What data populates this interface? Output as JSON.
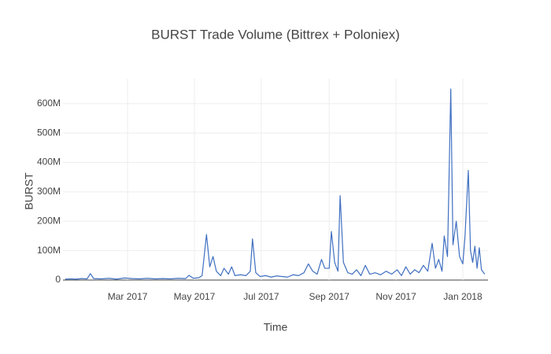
{
  "chart_data": {
    "type": "line",
    "title": "BURST Trade Volume (Bittrex + Poloniex)",
    "x_label": "Time",
    "y_label": "BURST",
    "color": "#3f6fc1",
    "grid": true,
    "xlim": [
      "2017-01-01",
      "2018-01-24"
    ],
    "ylim": [
      0,
      685000000
    ],
    "xticks": [
      {
        "value": "2017-03-01",
        "label": "Mar 2017"
      },
      {
        "value": "2017-05-01",
        "label": "May 2017"
      },
      {
        "value": "2017-07-01",
        "label": "Jul 2017"
      },
      {
        "value": "2017-09-01",
        "label": "Sep 2017"
      },
      {
        "value": "2017-11-01",
        "label": "Nov 2017"
      },
      {
        "value": "2018-01-01",
        "label": "Jan 2018"
      }
    ],
    "yticks": [
      0,
      {
        "value": 100000000,
        "label": "100M"
      },
      {
        "value": 200000000,
        "label": "200M"
      },
      {
        "value": 300000000,
        "label": "300M"
      },
      {
        "value": 400000000,
        "label": "400M"
      },
      {
        "value": 500000000,
        "label": "500M"
      },
      {
        "value": 600000000,
        "label": "600M"
      }
    ],
    "x": [
      "2017-01-03",
      "2017-01-08",
      "2017-01-13",
      "2017-01-18",
      "2017-01-23",
      "2017-01-26",
      "2017-01-29",
      "2017-02-05",
      "2017-02-12",
      "2017-02-19",
      "2017-02-26",
      "2017-03-05",
      "2017-03-12",
      "2017-03-19",
      "2017-03-26",
      "2017-04-02",
      "2017-04-09",
      "2017-04-16",
      "2017-04-23",
      "2017-04-26",
      "2017-04-30",
      "2017-05-05",
      "2017-05-08",
      "2017-05-12",
      "2017-05-15",
      "2017-05-18",
      "2017-05-21",
      "2017-05-25",
      "2017-05-28",
      "2017-06-01",
      "2017-06-04",
      "2017-06-07",
      "2017-06-12",
      "2017-06-17",
      "2017-06-21",
      "2017-06-23",
      "2017-06-26",
      "2017-06-30",
      "2017-07-05",
      "2017-07-10",
      "2017-07-15",
      "2017-07-20",
      "2017-07-25",
      "2017-07-30",
      "2017-08-04",
      "2017-08-09",
      "2017-08-13",
      "2017-08-17",
      "2017-08-21",
      "2017-08-25",
      "2017-08-28",
      "2017-09-01",
      "2017-09-03",
      "2017-09-06",
      "2017-09-09",
      "2017-09-11",
      "2017-09-14",
      "2017-09-18",
      "2017-09-22",
      "2017-09-26",
      "2017-09-30",
      "2017-10-04",
      "2017-10-08",
      "2017-10-13",
      "2017-10-18",
      "2017-10-23",
      "2017-10-28",
      "2017-11-02",
      "2017-11-06",
      "2017-11-10",
      "2017-11-14",
      "2017-11-18",
      "2017-11-22",
      "2017-11-26",
      "2017-11-30",
      "2017-12-04",
      "2017-12-07",
      "2017-12-10",
      "2017-12-13",
      "2017-12-15",
      "2017-12-18",
      "2017-12-21",
      "2017-12-23",
      "2017-12-26",
      "2017-12-29",
      "2018-01-01",
      "2018-01-03",
      "2018-01-06",
      "2018-01-08",
      "2018-01-10",
      "2018-01-12",
      "2018-01-14",
      "2018-01-16",
      "2018-01-18",
      "2018-01-21"
    ],
    "values": [
      3000000,
      4000000,
      3000000,
      5000000,
      4000000,
      22000000,
      5000000,
      4000000,
      6000000,
      3000000,
      7000000,
      5000000,
      4000000,
      6000000,
      4000000,
      5000000,
      4000000,
      6000000,
      5000000,
      16000000,
      6000000,
      8000000,
      15000000,
      155000000,
      45000000,
      80000000,
      30000000,
      15000000,
      40000000,
      20000000,
      45000000,
      15000000,
      18000000,
      15000000,
      30000000,
      140000000,
      25000000,
      12000000,
      15000000,
      10000000,
      14000000,
      12000000,
      10000000,
      18000000,
      15000000,
      25000000,
      55000000,
      30000000,
      20000000,
      70000000,
      40000000,
      40000000,
      165000000,
      60000000,
      30000000,
      287000000,
      60000000,
      25000000,
      20000000,
      35000000,
      15000000,
      50000000,
      20000000,
      25000000,
      18000000,
      30000000,
      20000000,
      35000000,
      15000000,
      45000000,
      20000000,
      35000000,
      25000000,
      50000000,
      30000000,
      125000000,
      40000000,
      70000000,
      30000000,
      150000000,
      80000000,
      650000000,
      120000000,
      200000000,
      80000000,
      55000000,
      150000000,
      373000000,
      100000000,
      60000000,
      115000000,
      40000000,
      110000000,
      35000000,
      20000000
    ]
  }
}
